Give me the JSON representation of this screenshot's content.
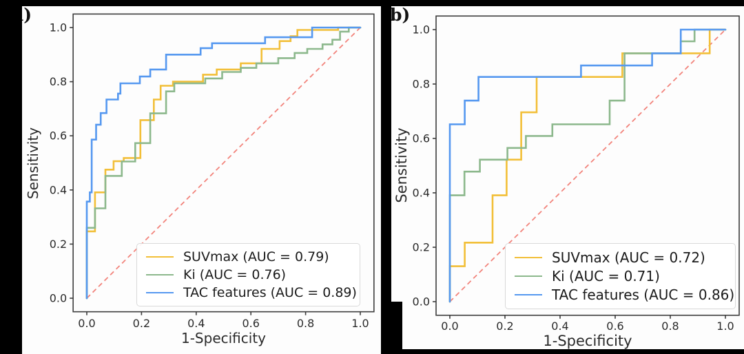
{
  "figure": {
    "background_color": "#000000",
    "panel_background": "#fdfdfd",
    "axis_color": "#3c3c3c",
    "text_color": "#2a2a2a"
  },
  "chart_data": [
    {
      "type": "line",
      "panel_label": "a)",
      "xlabel": "1-Specificity",
      "ylabel": "Sensitivity",
      "xlim": [
        0.0,
        1.0
      ],
      "ylim": [
        0.0,
        1.0
      ],
      "xtick_values": [
        0.0,
        0.2,
        0.4,
        0.6,
        0.8,
        1.0
      ],
      "xtick_labels": [
        "0.0",
        "0.2",
        "0.4",
        "0.6",
        "0.8",
        "1.0"
      ],
      "ytick_values": [
        0.0,
        0.2,
        0.4,
        0.6,
        0.8,
        1.0
      ],
      "ytick_labels": [
        "0.0",
        "0.2",
        "0.4",
        "0.6",
        "0.8",
        "1.0"
      ],
      "grid": false,
      "legend_position": "lower right",
      "diagonal_reference": {
        "from": [
          0,
          0
        ],
        "to": [
          1,
          1
        ],
        "color": "#f2837b",
        "style": "dashed"
      },
      "series": [
        {
          "name": "SUVmax (AUC = 0.79)",
          "auc": 0.79,
          "color": "#f2bf38",
          "points": [
            [
              0,
              0
            ],
            [
              0,
              0.247
            ],
            [
              0.03,
              0.247
            ],
            [
              0.03,
              0.391
            ],
            [
              0.068,
              0.391
            ],
            [
              0.068,
              0.475
            ],
            [
              0.098,
              0.475
            ],
            [
              0.098,
              0.506
            ],
            [
              0.135,
              0.506
            ],
            [
              0.135,
              0.518
            ],
            [
              0.196,
              0.518
            ],
            [
              0.196,
              0.658
            ],
            [
              0.245,
              0.658
            ],
            [
              0.245,
              0.734
            ],
            [
              0.27,
              0.734
            ],
            [
              0.27,
              0.785
            ],
            [
              0.315,
              0.785
            ],
            [
              0.315,
              0.8
            ],
            [
              0.425,
              0.8
            ],
            [
              0.425,
              0.826
            ],
            [
              0.475,
              0.826
            ],
            [
              0.475,
              0.845
            ],
            [
              0.563,
              0.845
            ],
            [
              0.563,
              0.868
            ],
            [
              0.639,
              0.868
            ],
            [
              0.639,
              0.921
            ],
            [
              0.705,
              0.921
            ],
            [
              0.705,
              0.95
            ],
            [
              0.745,
              0.95
            ],
            [
              0.745,
              0.968
            ],
            [
              0.77,
              0.968
            ],
            [
              0.77,
              0.991
            ],
            [
              0.919,
              0.991
            ],
            [
              0.919,
              1
            ],
            [
              1,
              1
            ]
          ]
        },
        {
          "name": "Ki (AUC = 0.76)",
          "auc": 0.76,
          "color": "#8cb88c",
          "points": [
            [
              0,
              0
            ],
            [
              0,
              0.26
            ],
            [
              0.03,
              0.26
            ],
            [
              0.03,
              0.332
            ],
            [
              0.068,
              0.332
            ],
            [
              0.068,
              0.452
            ],
            [
              0.128,
              0.452
            ],
            [
              0.128,
              0.505
            ],
            [
              0.177,
              0.505
            ],
            [
              0.177,
              0.573
            ],
            [
              0.232,
              0.573
            ],
            [
              0.232,
              0.683
            ],
            [
              0.29,
              0.683
            ],
            [
              0.29,
              0.764
            ],
            [
              0.32,
              0.764
            ],
            [
              0.32,
              0.794
            ],
            [
              0.433,
              0.794
            ],
            [
              0.433,
              0.812
            ],
            [
              0.495,
              0.812
            ],
            [
              0.495,
              0.836
            ],
            [
              0.563,
              0.836
            ],
            [
              0.563,
              0.851
            ],
            [
              0.62,
              0.851
            ],
            [
              0.62,
              0.868
            ],
            [
              0.7,
              0.868
            ],
            [
              0.7,
              0.887
            ],
            [
              0.76,
              0.887
            ],
            [
              0.76,
              0.906
            ],
            [
              0.806,
              0.906
            ],
            [
              0.806,
              0.921
            ],
            [
              0.862,
              0.921
            ],
            [
              0.862,
              0.938
            ],
            [
              0.898,
              0.938
            ],
            [
              0.898,
              0.955
            ],
            [
              0.926,
              0.955
            ],
            [
              0.926,
              0.985
            ],
            [
              0.958,
              0.985
            ],
            [
              0.958,
              1
            ],
            [
              1,
              1
            ]
          ]
        },
        {
          "name": "TAC features (AUC = 0.89)",
          "auc": 0.89,
          "color": "#5598f0",
          "points": [
            [
              0,
              0
            ],
            [
              0,
              0.357
            ],
            [
              0.011,
              0.357
            ],
            [
              0.011,
              0.391
            ],
            [
              0.018,
              0.391
            ],
            [
              0.018,
              0.586
            ],
            [
              0.034,
              0.586
            ],
            [
              0.034,
              0.641
            ],
            [
              0.051,
              0.641
            ],
            [
              0.051,
              0.684
            ],
            [
              0.072,
              0.684
            ],
            [
              0.072,
              0.734
            ],
            [
              0.114,
              0.734
            ],
            [
              0.114,
              0.756
            ],
            [
              0.123,
              0.756
            ],
            [
              0.123,
              0.794
            ],
            [
              0.194,
              0.794
            ],
            [
              0.194,
              0.819
            ],
            [
              0.232,
              0.819
            ],
            [
              0.232,
              0.845
            ],
            [
              0.29,
              0.845
            ],
            [
              0.29,
              0.9
            ],
            [
              0.416,
              0.9
            ],
            [
              0.416,
              0.924
            ],
            [
              0.458,
              0.924
            ],
            [
              0.458,
              0.942
            ],
            [
              0.652,
              0.942
            ],
            [
              0.652,
              0.964
            ],
            [
              0.824,
              0.964
            ],
            [
              0.824,
              1
            ],
            [
              1,
              1
            ]
          ]
        }
      ]
    },
    {
      "type": "line",
      "panel_label": "b)",
      "xlabel": "1-Specificity",
      "ylabel": "Sensitivity",
      "xlim": [
        0.0,
        1.0
      ],
      "ylim": [
        0.0,
        1.0
      ],
      "xtick_values": [
        0.0,
        0.2,
        0.4,
        0.6,
        0.8,
        1.0
      ],
      "xtick_labels": [
        "0.0",
        "0.2",
        "0.4",
        "0.6",
        "0.8",
        "1.0"
      ],
      "ytick_values": [
        0.0,
        0.2,
        0.4,
        0.6,
        0.8,
        1.0
      ],
      "ytick_labels": [
        "0.0",
        "0.2",
        "0.4",
        "0.6",
        "0.8",
        "1.0"
      ],
      "grid": false,
      "legend_position": "lower right",
      "diagonal_reference": {
        "from": [
          0,
          0
        ],
        "to": [
          1,
          1
        ],
        "color": "#f2837b",
        "style": "dashed"
      },
      "series": [
        {
          "name": "SUVmax (AUC = 0.72)",
          "auc": 0.72,
          "color": "#f2bf38",
          "points": [
            [
              0,
              0
            ],
            [
              0,
              0.13
            ],
            [
              0.054,
              0.13
            ],
            [
              0.054,
              0.217
            ],
            [
              0.155,
              0.217
            ],
            [
              0.155,
              0.391
            ],
            [
              0.206,
              0.391
            ],
            [
              0.206,
              0.522
            ],
            [
              0.259,
              0.522
            ],
            [
              0.259,
              0.696
            ],
            [
              0.315,
              0.696
            ],
            [
              0.315,
              0.826
            ],
            [
              0.626,
              0.826
            ],
            [
              0.626,
              0.913
            ],
            [
              0.943,
              0.913
            ],
            [
              0.943,
              1
            ],
            [
              1,
              1
            ]
          ]
        },
        {
          "name": "Ki (AUC = 0.71)",
          "auc": 0.71,
          "color": "#8cb88c",
          "points": [
            [
              0,
              0
            ],
            [
              0,
              0.391
            ],
            [
              0.053,
              0.391
            ],
            [
              0.053,
              0.478
            ],
            [
              0.109,
              0.478
            ],
            [
              0.109,
              0.522
            ],
            [
              0.209,
              0.522
            ],
            [
              0.209,
              0.565
            ],
            [
              0.276,
              0.565
            ],
            [
              0.276,
              0.609
            ],
            [
              0.372,
              0.609
            ],
            [
              0.372,
              0.652
            ],
            [
              0.58,
              0.652
            ],
            [
              0.58,
              0.739
            ],
            [
              0.634,
              0.739
            ],
            [
              0.634,
              0.913
            ],
            [
              0.838,
              0.913
            ],
            [
              0.838,
              0.957
            ],
            [
              0.888,
              0.957
            ],
            [
              0.888,
              1
            ],
            [
              1,
              1
            ]
          ]
        },
        {
          "name": "TAC features (AUC = 0.86)",
          "auc": 0.86,
          "color": "#5598f0",
          "points": [
            [
              0,
              0
            ],
            [
              0,
              0.652
            ],
            [
              0.054,
              0.652
            ],
            [
              0.054,
              0.739
            ],
            [
              0.104,
              0.739
            ],
            [
              0.104,
              0.826
            ],
            [
              0.476,
              0.826
            ],
            [
              0.476,
              0.868
            ],
            [
              0.734,
              0.868
            ],
            [
              0.734,
              0.913
            ],
            [
              0.838,
              0.913
            ],
            [
              0.838,
              1
            ],
            [
              1,
              1
            ]
          ]
        }
      ]
    }
  ]
}
